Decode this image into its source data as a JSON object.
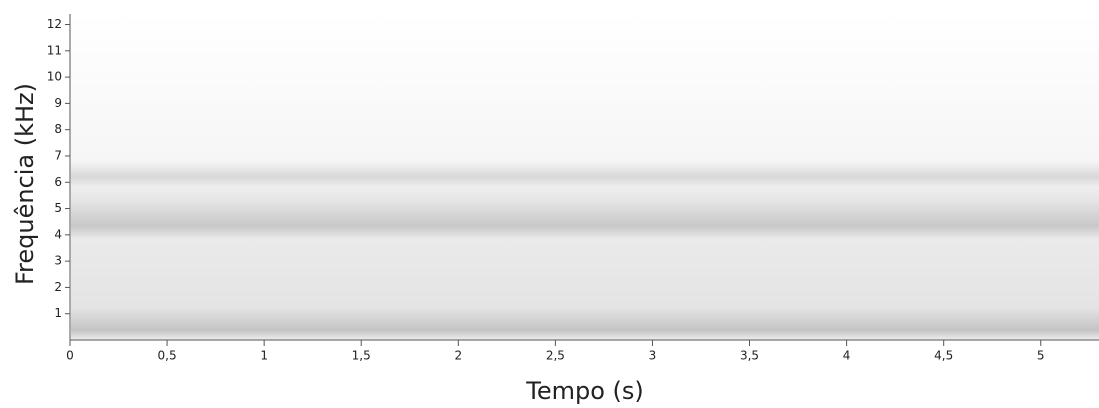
{
  "chart_data": {
    "type": "spectrogram",
    "xlabel": "Tempo (s)",
    "ylabel": "Frequência (kHz)",
    "xlim": [
      0,
      5.3
    ],
    "ylim": [
      0,
      12.4
    ],
    "xticks": [
      0,
      {
        "value": 0.5,
        "label": "0,5"
      },
      1,
      {
        "value": 1.5,
        "label": "1,5"
      },
      2,
      {
        "value": 2.5,
        "label": "2,5"
      },
      3,
      {
        "value": 3.5,
        "label": "3,5"
      },
      4,
      {
        "value": 4.5,
        "label": "4,5"
      },
      5
    ],
    "yticks": [
      1,
      2,
      3,
      4,
      5,
      6,
      7,
      8,
      9,
      10,
      11,
      12
    ]
  }
}
